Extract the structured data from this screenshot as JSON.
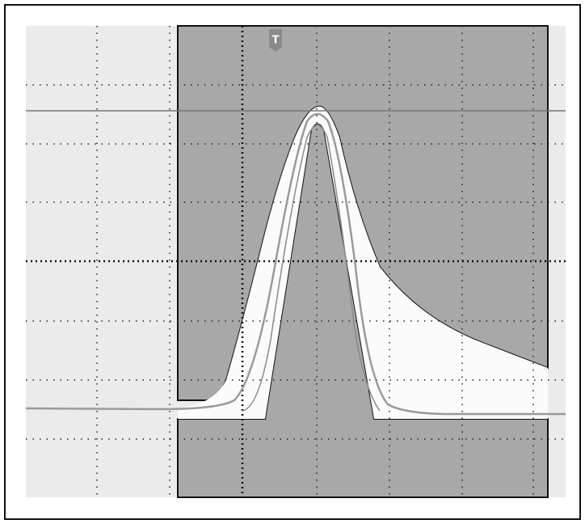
{
  "trigger_marker": {
    "label": "T"
  }
}
